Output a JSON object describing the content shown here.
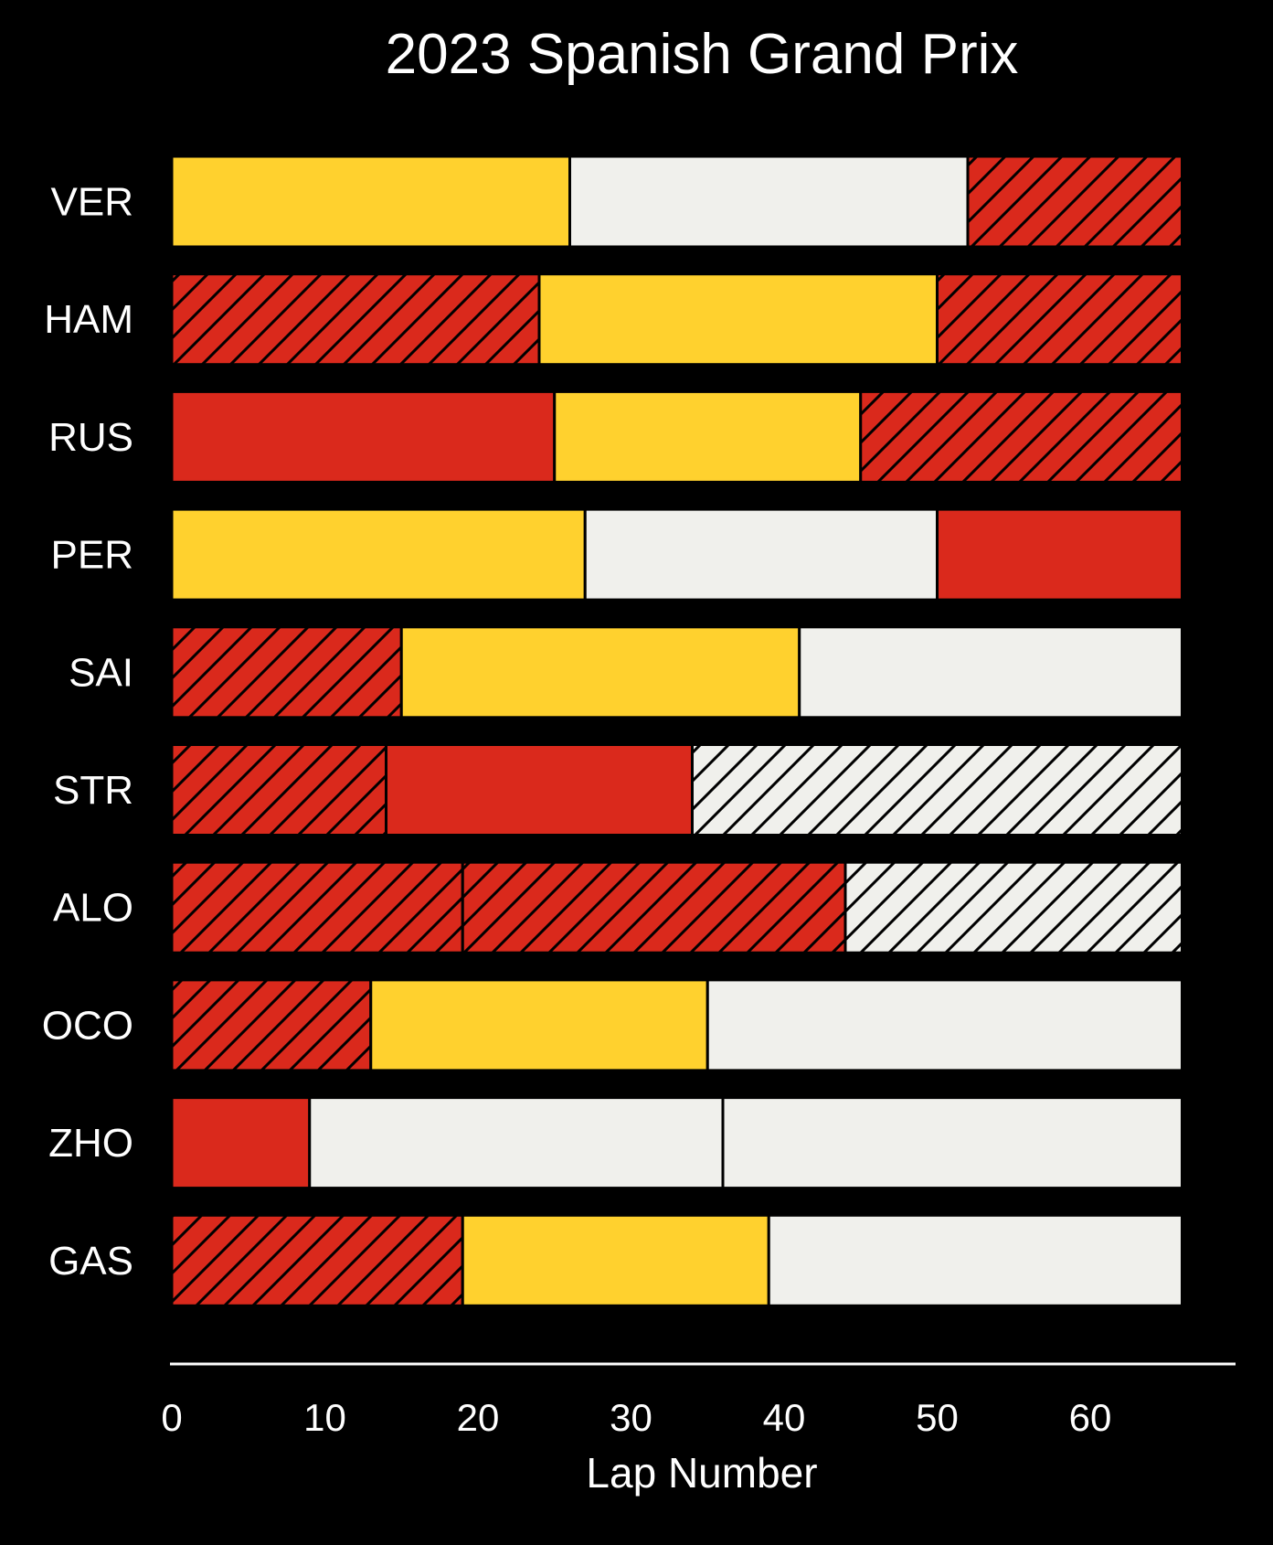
{
  "chart_data": {
    "type": "bar",
    "orientation": "horizontal-stacked",
    "title": "2023 Spanish Grand Prix",
    "xlabel": "Lap Number",
    "ylabel": "",
    "xlim": [
      0,
      70
    ],
    "xticks": [
      0,
      10,
      20,
      30,
      40,
      50,
      60
    ],
    "grid": false,
    "legend": "none",
    "compound_colors": {
      "SOFT": "#da291c",
      "MEDIUM": "#ffd12e",
      "HARD": "#f0f0ec"
    },
    "drivers": [
      {
        "driver": "VER",
        "stints": [
          {
            "compound": "MEDIUM",
            "laps": 26,
            "used": false
          },
          {
            "compound": "HARD",
            "laps": 26,
            "used": false
          },
          {
            "compound": "SOFT",
            "laps": 14,
            "used": true
          }
        ]
      },
      {
        "driver": "HAM",
        "stints": [
          {
            "compound": "SOFT",
            "laps": 24,
            "used": true
          },
          {
            "compound": "MEDIUM",
            "laps": 26,
            "used": false
          },
          {
            "compound": "SOFT",
            "laps": 16,
            "used": true
          }
        ]
      },
      {
        "driver": "RUS",
        "stints": [
          {
            "compound": "SOFT",
            "laps": 25,
            "used": false
          },
          {
            "compound": "MEDIUM",
            "laps": 20,
            "used": false
          },
          {
            "compound": "SOFT",
            "laps": 21,
            "used": true
          }
        ]
      },
      {
        "driver": "PER",
        "stints": [
          {
            "compound": "MEDIUM",
            "laps": 27,
            "used": false
          },
          {
            "compound": "HARD",
            "laps": 23,
            "used": false
          },
          {
            "compound": "SOFT",
            "laps": 16,
            "used": false
          }
        ]
      },
      {
        "driver": "SAI",
        "stints": [
          {
            "compound": "SOFT",
            "laps": 15,
            "used": true
          },
          {
            "compound": "MEDIUM",
            "laps": 26,
            "used": false
          },
          {
            "compound": "HARD",
            "laps": 25,
            "used": false
          }
        ]
      },
      {
        "driver": "STR",
        "stints": [
          {
            "compound": "SOFT",
            "laps": 14,
            "used": true
          },
          {
            "compound": "SOFT",
            "laps": 20,
            "used": false
          },
          {
            "compound": "HARD",
            "laps": 32,
            "used": true
          }
        ]
      },
      {
        "driver": "ALO",
        "stints": [
          {
            "compound": "SOFT",
            "laps": 19,
            "used": true
          },
          {
            "compound": "SOFT",
            "laps": 25,
            "used": true
          },
          {
            "compound": "HARD",
            "laps": 22,
            "used": true
          }
        ]
      },
      {
        "driver": "OCO",
        "stints": [
          {
            "compound": "SOFT",
            "laps": 13,
            "used": true
          },
          {
            "compound": "MEDIUM",
            "laps": 22,
            "used": false
          },
          {
            "compound": "HARD",
            "laps": 31,
            "used": false
          }
        ]
      },
      {
        "driver": "ZHO",
        "stints": [
          {
            "compound": "SOFT",
            "laps": 9,
            "used": false
          },
          {
            "compound": "HARD",
            "laps": 27,
            "used": false
          },
          {
            "compound": "HARD",
            "laps": 30,
            "used": false
          }
        ]
      },
      {
        "driver": "GAS",
        "stints": [
          {
            "compound": "SOFT",
            "laps": 19,
            "used": true
          },
          {
            "compound": "MEDIUM",
            "laps": 20,
            "used": false
          },
          {
            "compound": "HARD",
            "laps": 27,
            "used": false
          }
        ]
      }
    ]
  }
}
